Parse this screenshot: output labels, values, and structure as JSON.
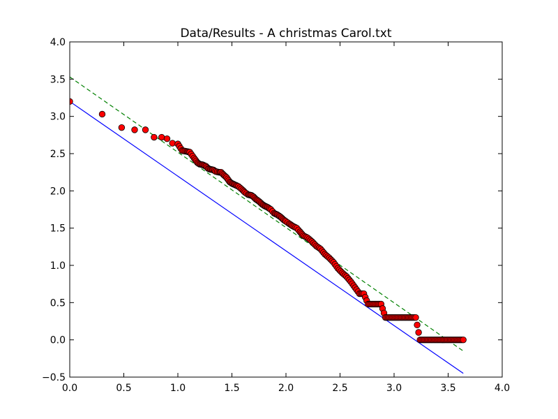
{
  "chart_data": {
    "type": "scatter",
    "title": "Data/Results - A christmas Carol.txt",
    "xlabel": "",
    "ylabel": "",
    "xlim": [
      0,
      4
    ],
    "ylim": [
      -0.5,
      4
    ],
    "grid": false,
    "x_ticks": [
      "0.0",
      "0.5",
      "1.0",
      "1.5",
      "2.0",
      "2.5",
      "3.0",
      "3.5",
      "4.0"
    ],
    "y_ticks": [
      "−0.5",
      "0.0",
      "0.5",
      "1.0",
      "1.5",
      "2.0",
      "2.5",
      "3.0",
      "3.5",
      "4.0"
    ],
    "colors": {
      "points": "#ff0000",
      "solid_line": "#0000ff",
      "dashed_line": "#008000"
    },
    "lines": [
      {
        "style": "solid",
        "x": [
          0,
          3.64
        ],
        "y": [
          3.2,
          -0.45
        ]
      },
      {
        "style": "dashed",
        "x": [
          0,
          3.64
        ],
        "y": [
          3.53,
          -0.15
        ]
      }
    ],
    "series": [
      {
        "x": [
          0,
          0.3,
          0.48,
          0.6,
          0.7,
          0.78,
          0.85,
          0.9,
          0.95,
          1.0,
          1.04,
          1.08,
          1.11,
          1.15,
          1.18,
          1.2,
          1.23,
          1.26,
          1.28,
          1.3,
          1.33,
          1.35,
          1.38,
          1.4,
          1.42,
          1.45,
          1.48,
          1.5,
          1.53,
          1.56,
          1.6,
          1.62,
          1.65,
          1.68,
          1.7,
          1.72,
          1.75,
          1.78,
          1.8,
          1.83,
          1.86,
          1.89,
          1.92,
          1.95,
          1.98,
          2.0,
          2.03,
          2.06,
          2.1,
          2.13,
          2.16,
          2.2,
          2.24,
          2.28,
          2.32,
          2.36,
          2.4,
          2.44,
          2.48,
          2.52,
          2.56,
          2.6,
          2.64,
          2.68,
          2.72,
          2.76,
          2.8,
          2.84,
          2.88,
          2.92,
          2.96,
          3.0,
          3.04,
          3.08,
          3.12,
          3.16,
          3.2,
          3.24,
          3.28,
          3.32,
          3.36,
          3.4,
          3.44,
          3.48,
          3.52,
          3.56,
          3.6,
          3.64
        ],
        "y": [
          3.2,
          3.03,
          2.85,
          2.82,
          2.82,
          2.72,
          2.72,
          2.7,
          2.64,
          2.63,
          2.54,
          2.53,
          2.52,
          2.44,
          2.38,
          2.36,
          2.35,
          2.33,
          2.3,
          2.29,
          2.28,
          2.26,
          2.25,
          2.25,
          2.22,
          2.18,
          2.12,
          2.1,
          2.08,
          2.06,
          2.01,
          1.98,
          1.95,
          1.94,
          1.92,
          1.89,
          1.86,
          1.82,
          1.8,
          1.78,
          1.75,
          1.7,
          1.68,
          1.65,
          1.61,
          1.59,
          1.56,
          1.53,
          1.5,
          1.45,
          1.4,
          1.37,
          1.32,
          1.26,
          1.22,
          1.15,
          1.1,
          1.04,
          0.96,
          0.9,
          0.85,
          0.78,
          0.7,
          0.62,
          0.62,
          0.48,
          0.48,
          0.48,
          0.48,
          0.3,
          0.3,
          0.3,
          0.3,
          0.3,
          0.3,
          0.3,
          0.3,
          0.0,
          0.0,
          0.0,
          0.0,
          0.0,
          0.0,
          0.0,
          0.0,
          0.0,
          0.0,
          0.0
        ]
      }
    ]
  }
}
